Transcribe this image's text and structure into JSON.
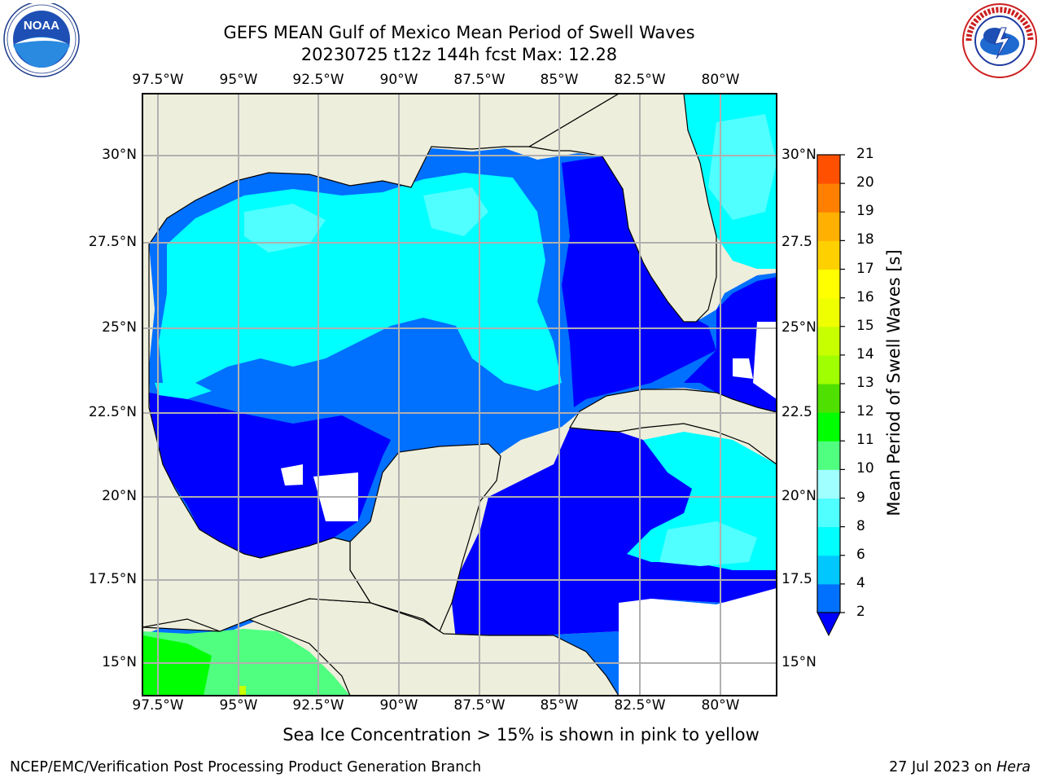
{
  "title_line1": "GEFS MEAN Gulf of Mexico Mean Period of Swell Waves",
  "title_line2": "20230725 t12z 144h fcst   Max: 12.28",
  "top_lon_labels": [
    "97.5°W",
    "95°W",
    "92.5°W",
    "90°W",
    "87.5°W",
    "85°W",
    "82.5°W",
    "80°W"
  ],
  "bottom_lon_labels": [
    "97.5°W",
    "95°W",
    "92.5°W",
    "90°W",
    "87.5°W",
    "85°W",
    "82.5°W",
    "80°W"
  ],
  "left_lat_labels": [
    "30°N",
    "27.5°N",
    "25°N",
    "22.5°N",
    "20°N",
    "17.5°N",
    "15°N"
  ],
  "right_lat_labels": [
    "30°N",
    "27.5",
    "25°N",
    "22.5",
    "20°N",
    "17.5",
    "15°N"
  ],
  "colorbar": {
    "title": "Mean Period of Swell Waves [s]",
    "labels": [
      "2",
      "4",
      "6",
      "8",
      "9",
      "10",
      "11",
      "12",
      "13",
      "14",
      "15",
      "16",
      "17",
      "18",
      "19",
      "20",
      "21"
    ],
    "colors": [
      "#0070ff",
      "#00c8ff",
      "#00ffff",
      "#50ffff",
      "#a0ffff",
      "#50ff80",
      "#00ff00",
      "#50e000",
      "#a0ff00",
      "#c8ff00",
      "#f0ff00",
      "#ffff00",
      "#ffd000",
      "#ffb000",
      "#ff8000",
      "#ff5000",
      "#ff2000",
      "#ff0000"
    ],
    "under_color": "#0000ff"
  },
  "land_color": "#eeeedc",
  "note": "Sea Ice Concentration > 15% is shown in pink to yellow",
  "footer_left": "NCEP/EMC/Verification Post Processing Product Generation Branch",
  "footer_right_date": "27 Jul 2023 on ",
  "footer_right_host": "Hera"
}
